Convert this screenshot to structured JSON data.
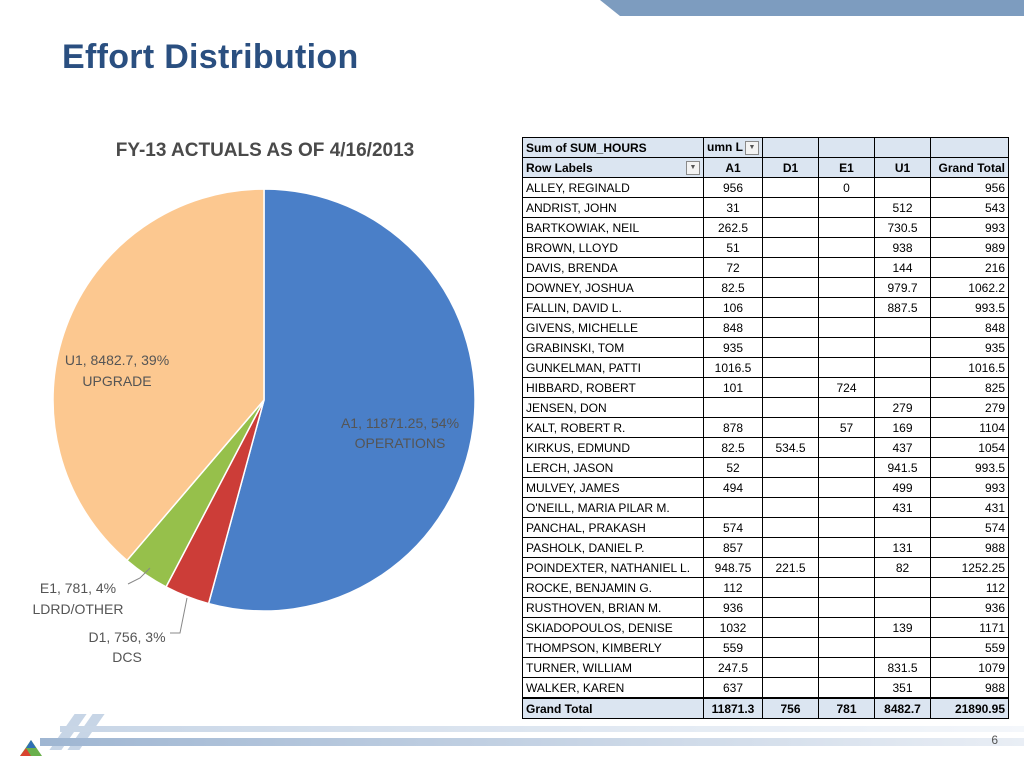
{
  "slide": {
    "title": "Effort Distribution",
    "page_number": "6"
  },
  "chart_data": {
    "type": "pie",
    "title": "FY-13 ACTUALS AS OF 4/16/2013",
    "slices": [
      {
        "label": "A1",
        "value": 11871.25,
        "percent": "54%",
        "category": "OPERATIONS",
        "color": "#4a7fc8"
      },
      {
        "label": "D1",
        "value": 756,
        "percent": "3%",
        "category": "DCS",
        "color": "#cc3d38"
      },
      {
        "label": "E1",
        "value": 781,
        "percent": "4%",
        "category": "LDRD/OTHER",
        "color": "#96c04b"
      },
      {
        "label": "U1",
        "value": 8482.7,
        "percent": "39%",
        "category": "UPGRADE",
        "color": "#fcc890"
      }
    ],
    "labels": {
      "a1_line1": "A1, 11871.25, 54%",
      "a1_line2": "OPERATIONS",
      "u1_line1": "U1, 8482.7, 39%",
      "u1_line2": "UPGRADE",
      "e1_line1": "E1, 781, 4%",
      "e1_line2": "LDRD/OTHER",
      "d1_line1": "D1, 756, 3%",
      "d1_line2": "DCS"
    }
  },
  "pivot": {
    "values_caption": "Sum of SUM_HOURS",
    "columns_caption": "umn L",
    "row_labels_caption": "Row Labels",
    "columns": [
      "A1",
      "D1",
      "E1",
      "U1",
      "Grand Total"
    ],
    "rows": [
      {
        "name": "ALLEY, REGINALD",
        "a1": "956",
        "d1": "",
        "e1": "0",
        "u1": "",
        "total": "956"
      },
      {
        "name": "ANDRIST, JOHN",
        "a1": "31",
        "d1": "",
        "e1": "",
        "u1": "512",
        "total": "543"
      },
      {
        "name": "BARTKOWIAK, NEIL",
        "a1": "262.5",
        "d1": "",
        "e1": "",
        "u1": "730.5",
        "total": "993"
      },
      {
        "name": "BROWN, LLOYD",
        "a1": "51",
        "d1": "",
        "e1": "",
        "u1": "938",
        "total": "989"
      },
      {
        "name": "DAVIS, BRENDA",
        "a1": "72",
        "d1": "",
        "e1": "",
        "u1": "144",
        "total": "216"
      },
      {
        "name": "DOWNEY, JOSHUA",
        "a1": "82.5",
        "d1": "",
        "e1": "",
        "u1": "979.7",
        "total": "1062.2"
      },
      {
        "name": "FALLIN, DAVID L.",
        "a1": "106",
        "d1": "",
        "e1": "",
        "u1": "887.5",
        "total": "993.5"
      },
      {
        "name": "GIVENS, MICHELLE",
        "a1": "848",
        "d1": "",
        "e1": "",
        "u1": "",
        "total": "848"
      },
      {
        "name": "GRABINSKI, TOM",
        "a1": "935",
        "d1": "",
        "e1": "",
        "u1": "",
        "total": "935"
      },
      {
        "name": "GUNKELMAN, PATTI",
        "a1": "1016.5",
        "d1": "",
        "e1": "",
        "u1": "",
        "total": "1016.5"
      },
      {
        "name": "HIBBARD, ROBERT",
        "a1": "101",
        "d1": "",
        "e1": "724",
        "u1": "",
        "total": "825"
      },
      {
        "name": "JENSEN, DON",
        "a1": "",
        "d1": "",
        "e1": "",
        "u1": "279",
        "total": "279"
      },
      {
        "name": "KALT, ROBERT R.",
        "a1": "878",
        "d1": "",
        "e1": "57",
        "u1": "169",
        "total": "1104"
      },
      {
        "name": "KIRKUS, EDMUND",
        "a1": "82.5",
        "d1": "534.5",
        "e1": "",
        "u1": "437",
        "total": "1054"
      },
      {
        "name": "LERCH, JASON",
        "a1": "52",
        "d1": "",
        "e1": "",
        "u1": "941.5",
        "total": "993.5"
      },
      {
        "name": "MULVEY, JAMES",
        "a1": "494",
        "d1": "",
        "e1": "",
        "u1": "499",
        "total": "993"
      },
      {
        "name": "O'NEILL, MARIA PILAR M.",
        "a1": "",
        "d1": "",
        "e1": "",
        "u1": "431",
        "total": "431"
      },
      {
        "name": "PANCHAL, PRAKASH",
        "a1": "574",
        "d1": "",
        "e1": "",
        "u1": "",
        "total": "574"
      },
      {
        "name": "PASHOLK, DANIEL P.",
        "a1": "857",
        "d1": "",
        "e1": "",
        "u1": "131",
        "total": "988"
      },
      {
        "name": "POINDEXTER, NATHANIEL L.",
        "a1": "948.75",
        "d1": "221.5",
        "e1": "",
        "u1": "82",
        "total": "1252.25"
      },
      {
        "name": "ROCKE, BENJAMIN G.",
        "a1": "112",
        "d1": "",
        "e1": "",
        "u1": "",
        "total": "112"
      },
      {
        "name": "RUSTHOVEN, BRIAN M.",
        "a1": "936",
        "d1": "",
        "e1": "",
        "u1": "",
        "total": "936"
      },
      {
        "name": "SKIADOPOULOS, DENISE",
        "a1": "1032",
        "d1": "",
        "e1": "",
        "u1": "139",
        "total": "1171"
      },
      {
        "name": "THOMPSON, KIMBERLY",
        "a1": "559",
        "d1": "",
        "e1": "",
        "u1": "",
        "total": "559"
      },
      {
        "name": "TURNER, WILLIAM",
        "a1": "247.5",
        "d1": "",
        "e1": "",
        "u1": "831.5",
        "total": "1079"
      },
      {
        "name": "WALKER, KAREN",
        "a1": "637",
        "d1": "",
        "e1": "",
        "u1": "351",
        "total": "988"
      }
    ],
    "grand_total": {
      "name": "Grand Total",
      "a1": "11871.3",
      "d1": "756",
      "e1": "781",
      "u1": "8482.7",
      "total": "21890.95"
    }
  }
}
